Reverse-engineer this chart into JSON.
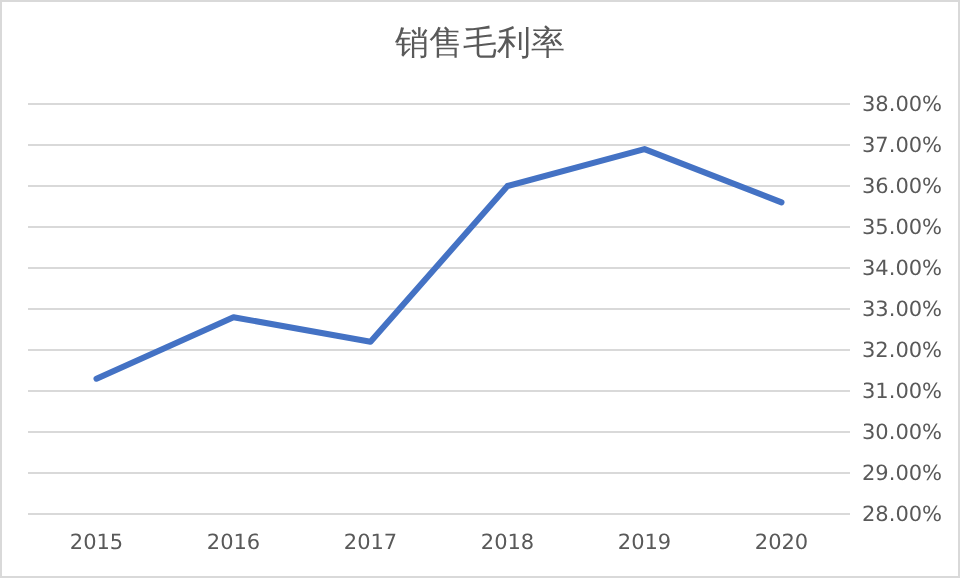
{
  "chart_data": {
    "type": "line",
    "title": "销售毛利率",
    "categories": [
      "2015",
      "2016",
      "2017",
      "2018",
      "2019",
      "2020"
    ],
    "series": [
      {
        "color": "#4472c4",
        "values": [
          31.3,
          32.8,
          32.2,
          36.0,
          36.9,
          35.6
        ]
      }
    ],
    "ylim": [
      28,
      38
    ],
    "yticks": [
      {
        "value": 28,
        "label": "28.00%"
      },
      {
        "value": 29,
        "label": "29.00%"
      },
      {
        "value": 30,
        "label": "30.00%"
      },
      {
        "value": 31,
        "label": "31.00%"
      },
      {
        "value": 32,
        "label": "32.00%"
      },
      {
        "value": 33,
        "label": "33.00%"
      },
      {
        "value": 34,
        "label": "34.00%"
      },
      {
        "value": 35,
        "label": "35.00%"
      },
      {
        "value": 36,
        "label": "36.00%"
      },
      {
        "value": 37,
        "label": "37.00%"
      },
      {
        "value": 38,
        "label": "38.00%"
      }
    ],
    "grid": "y",
    "marker": "none",
    "line_style": "solid"
  }
}
